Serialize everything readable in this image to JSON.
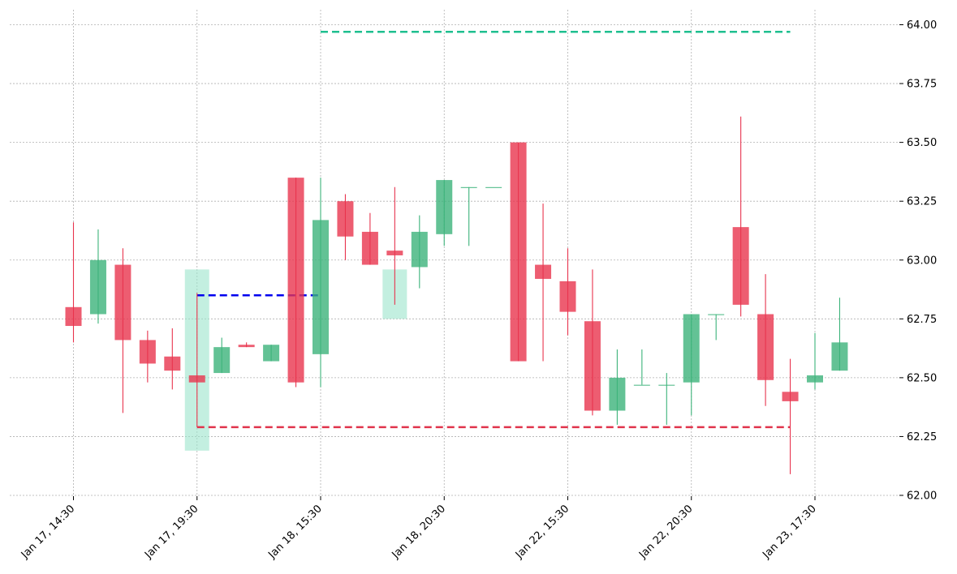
{
  "chart_data": {
    "type": "candlestick",
    "title": "",
    "xlabel": "",
    "ylabel": "",
    "ylim": [
      62.0,
      64.0
    ],
    "y_ticks": [
      "62.00",
      "62.25",
      "62.50",
      "62.75",
      "63.00",
      "63.25",
      "63.50",
      "63.75",
      "64.00"
    ],
    "y_axis_position": "right",
    "x_tick_labels": [
      {
        "index": 0,
        "label": "Jan 17, 14:30"
      },
      {
        "index": 5,
        "label": "Jan 17, 19:30"
      },
      {
        "index": 10,
        "label": "Jan 18, 15:30"
      },
      {
        "index": 15,
        "label": "Jan 18, 20:30"
      },
      {
        "index": 20,
        "label": "Jan 22, 15:30"
      },
      {
        "index": 25,
        "label": "Jan 22, 20:30"
      },
      {
        "index": 30,
        "label": "Jan 23, 17:30"
      }
    ],
    "grid": true,
    "colors": {
      "up": "#3cb37a",
      "down": "#e8344e",
      "highlight": "#9be5cc",
      "resistance": "#1fbf8f",
      "support": "#e0344c",
      "level": "#0000ee"
    },
    "candles": [
      {
        "index": 0,
        "open": 62.8,
        "high": 63.16,
        "low": 62.65,
        "close": 62.72
      },
      {
        "index": 1,
        "open": 62.77,
        "high": 63.13,
        "low": 62.73,
        "close": 63.0
      },
      {
        "index": 2,
        "open": 62.98,
        "high": 63.05,
        "low": 62.35,
        "close": 62.66
      },
      {
        "index": 3,
        "open": 62.66,
        "high": 62.7,
        "low": 62.48,
        "close": 62.56
      },
      {
        "index": 4,
        "open": 62.59,
        "high": 62.71,
        "low": 62.45,
        "close": 62.53
      },
      {
        "index": 5,
        "open": 62.51,
        "high": 62.86,
        "low": 62.29,
        "close": 62.48
      },
      {
        "index": 6,
        "open": 62.52,
        "high": 62.67,
        "low": 62.52,
        "close": 62.63
      },
      {
        "index": 7,
        "open": 62.64,
        "high": 62.65,
        "low": 62.63,
        "close": 62.63
      },
      {
        "index": 8,
        "open": 62.57,
        "high": 62.64,
        "low": 62.57,
        "close": 62.64
      },
      {
        "index": 9,
        "open": 63.35,
        "high": 63.35,
        "low": 62.46,
        "close": 62.48
      },
      {
        "index": 10,
        "open": 62.6,
        "high": 63.35,
        "low": 62.46,
        "close": 63.17
      },
      {
        "index": 11,
        "open": 63.25,
        "high": 63.28,
        "low": 63.0,
        "close": 63.1
      },
      {
        "index": 12,
        "open": 63.12,
        "high": 63.2,
        "low": 62.98,
        "close": 62.98
      },
      {
        "index": 13,
        "open": 63.04,
        "high": 63.31,
        "low": 62.81,
        "close": 63.02
      },
      {
        "index": 14,
        "open": 62.97,
        "high": 63.19,
        "low": 62.88,
        "close": 63.12
      },
      {
        "index": 15,
        "open": 63.11,
        "high": 63.34,
        "low": 63.06,
        "close": 63.34
      },
      {
        "index": 16,
        "open": 63.31,
        "high": 63.31,
        "low": 63.06,
        "close": 63.31
      },
      {
        "index": 17,
        "open": 63.31,
        "high": 63.31,
        "low": 63.31,
        "close": 63.31
      },
      {
        "index": 18,
        "open": 63.5,
        "high": 63.5,
        "low": 62.57,
        "close": 62.57
      },
      {
        "index": 19,
        "open": 62.98,
        "high": 63.24,
        "low": 62.57,
        "close": 62.92
      },
      {
        "index": 20,
        "open": 62.91,
        "high": 63.05,
        "low": 62.68,
        "close": 62.78
      },
      {
        "index": 21,
        "open": 62.74,
        "high": 62.96,
        "low": 62.34,
        "close": 62.36
      },
      {
        "index": 22,
        "open": 62.36,
        "high": 62.62,
        "low": 62.3,
        "close": 62.5
      },
      {
        "index": 23,
        "open": 62.47,
        "high": 62.62,
        "low": 62.47,
        "close": 62.47
      },
      {
        "index": 24,
        "open": 62.47,
        "high": 62.52,
        "low": 62.3,
        "close": 62.47
      },
      {
        "index": 25,
        "open": 62.48,
        "high": 62.77,
        "low": 62.34,
        "close": 62.77
      },
      {
        "index": 26,
        "open": 62.77,
        "high": 62.77,
        "low": 62.66,
        "close": 62.77
      },
      {
        "index": 27,
        "open": 63.14,
        "high": 63.61,
        "low": 62.76,
        "close": 62.81
      },
      {
        "index": 28,
        "open": 62.77,
        "high": 62.94,
        "low": 62.38,
        "close": 62.49
      },
      {
        "index": 29,
        "open": 62.44,
        "high": 62.58,
        "low": 62.09,
        "close": 62.4
      },
      {
        "index": 30,
        "open": 62.48,
        "high": 62.69,
        "low": 62.45,
        "close": 62.51
      },
      {
        "index": 31,
        "open": 62.53,
        "high": 62.84,
        "low": 62.53,
        "close": 62.65
      }
    ],
    "highlight_zones": [
      {
        "index": 5,
        "low": 62.19,
        "high": 62.96
      },
      {
        "index": 13,
        "low": 62.75,
        "high": 62.96
      }
    ],
    "horizontal_lines": [
      {
        "name": "resistance",
        "y": 63.97,
        "from_index": 10,
        "to_index": 29,
        "color": "#1fbf8f"
      },
      {
        "name": "level",
        "y": 62.85,
        "from_index": 5,
        "to_index": 10,
        "color": "#0000ee"
      },
      {
        "name": "support",
        "y": 62.29,
        "from_index": 5,
        "to_index": 29,
        "color": "#e0344c"
      }
    ]
  }
}
